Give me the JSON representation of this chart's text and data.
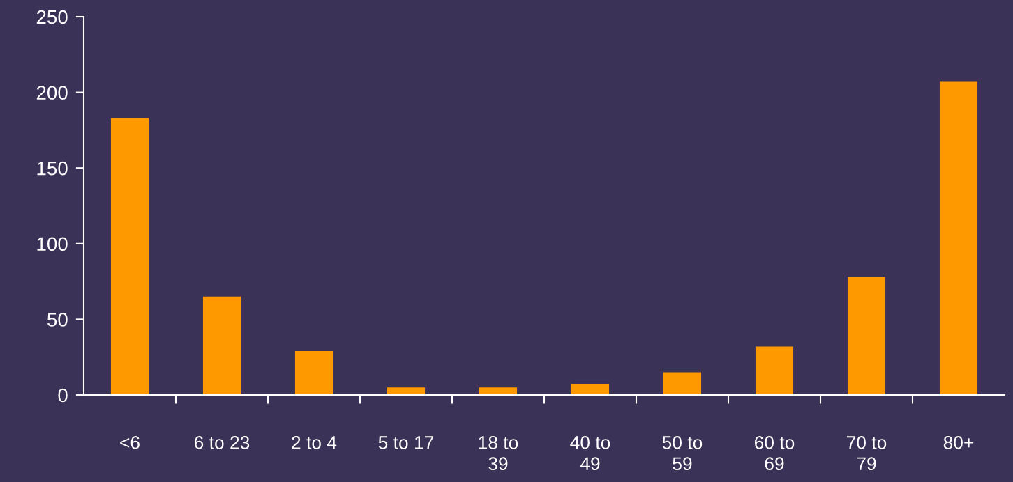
{
  "chart_data": {
    "type": "bar",
    "categories": [
      "<6",
      "6 to 23",
      "2 to 4",
      "5 to 17",
      "18 to 39",
      "40 to 49",
      "50 to 59",
      "60 to 69",
      "70 to 79",
      "80+"
    ],
    "values": [
      183,
      65,
      29,
      5,
      5,
      7,
      15,
      32,
      78,
      207
    ],
    "color": "#ff9900",
    "ylim": [
      0,
      250
    ],
    "yticks": [
      0,
      50,
      100,
      150,
      200,
      250
    ],
    "grid": false
  }
}
